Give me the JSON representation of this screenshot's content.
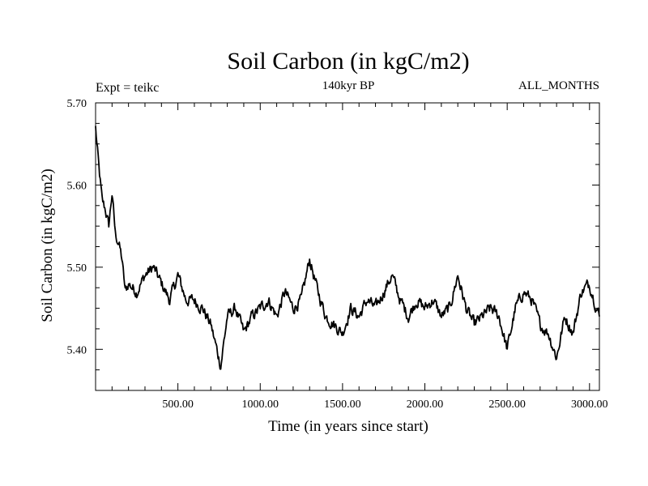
{
  "chart_data": {
    "type": "line",
    "title": "Soil Carbon (in kgC/m2)",
    "subtitle": "140kyr BP",
    "left_label": "Expt = teikc",
    "right_label": "ALL_MONTHS",
    "xlabel": "Time (in years since start)",
    "ylabel": "Soil Carbon (in kgC/m2)",
    "xlim": [
      0,
      3060
    ],
    "ylim": [
      5.35,
      5.7
    ],
    "x_ticks": [
      500,
      1000,
      1500,
      2000,
      2500,
      3000
    ],
    "x_tick_labels": [
      "500.00",
      "1000.00",
      "1500.00",
      "2000.00",
      "2500.00",
      "3000.00"
    ],
    "y_ticks": [
      5.4,
      5.5,
      5.6,
      5.7
    ],
    "y_tick_labels": [
      "5.40",
      "5.50",
      "5.60",
      "5.70"
    ],
    "series": [
      {
        "name": "Soil Carbon",
        "x": [
          0,
          20,
          40,
          60,
          80,
          100,
          120,
          140,
          160,
          180,
          200,
          250,
          300,
          350,
          400,
          450,
          500,
          550,
          600,
          650,
          700,
          760,
          800,
          850,
          900,
          950,
          1000,
          1050,
          1100,
          1150,
          1200,
          1250,
          1300,
          1350,
          1400,
          1450,
          1500,
          1550,
          1600,
          1650,
          1700,
          1750,
          1800,
          1850,
          1900,
          1950,
          2000,
          2050,
          2100,
          2150,
          2200,
          2250,
          2300,
          2350,
          2400,
          2450,
          2500,
          2550,
          2600,
          2650,
          2700,
          2750,
          2800,
          2850,
          2900,
          2950,
          3000,
          3060
        ],
        "y": [
          5.67,
          5.62,
          5.58,
          5.57,
          5.55,
          5.59,
          5.54,
          5.53,
          5.51,
          5.47,
          5.48,
          5.47,
          5.49,
          5.5,
          5.48,
          5.46,
          5.49,
          5.46,
          5.46,
          5.45,
          5.43,
          5.38,
          5.44,
          5.45,
          5.42,
          5.44,
          5.45,
          5.46,
          5.44,
          5.47,
          5.45,
          5.46,
          5.51,
          5.47,
          5.44,
          5.43,
          5.42,
          5.45,
          5.44,
          5.46,
          5.45,
          5.47,
          5.49,
          5.46,
          5.44,
          5.46,
          5.45,
          5.46,
          5.44,
          5.45,
          5.49,
          5.45,
          5.43,
          5.44,
          5.45,
          5.44,
          5.4,
          5.45,
          5.47,
          5.46,
          5.43,
          5.42,
          5.39,
          5.44,
          5.42,
          5.47,
          5.48,
          5.44
        ],
        "color": "#000000"
      }
    ]
  }
}
